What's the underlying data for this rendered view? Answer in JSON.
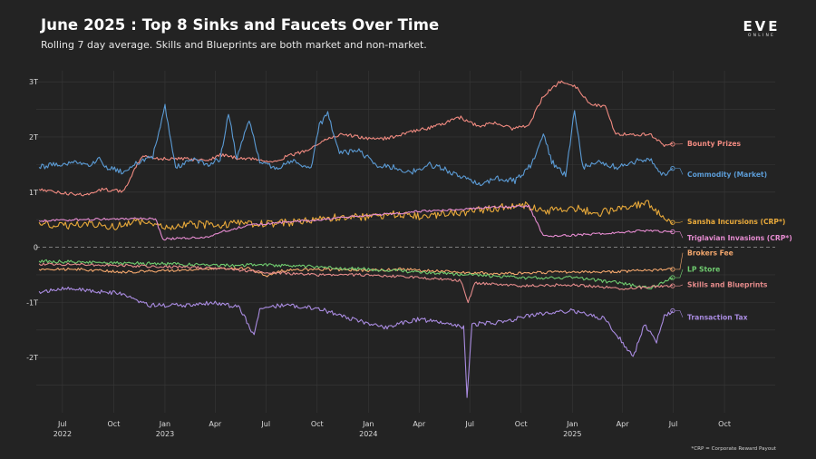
{
  "header": {
    "title": "June 2025 : Top 8 Sinks and Faucets Over Time",
    "subtitle": "Rolling 7 day average. Skills and Blueprints are both market and non-market."
  },
  "logo": {
    "main": "EVE",
    "sub": "ONLINE"
  },
  "footnote": "*CRP = Corporate Reward Payout",
  "chart_data": {
    "type": "line",
    "xlabel": "",
    "ylabel": "",
    "xlim": [
      "2022-05-15",
      "2025-12-31"
    ],
    "ylim": [
      -3.0,
      3.2
    ],
    "y_unit": "trillion ISK",
    "grid": true,
    "zero_line": "dashed",
    "legend": "inline-right",
    "y_ticks": [
      {
        "value": 3,
        "label": "3T"
      },
      {
        "value": 2,
        "label": "2T"
      },
      {
        "value": 1,
        "label": "1T"
      },
      {
        "value": 0,
        "label": "0"
      },
      {
        "value": -1,
        "label": "-1T"
      },
      {
        "value": -2,
        "label": "-2T"
      }
    ],
    "x_ticks": [
      {
        "date": "2022-07-01",
        "month": "Jul",
        "year": "2022"
      },
      {
        "date": "2022-10-01",
        "month": "Oct",
        "year": ""
      },
      {
        "date": "2023-01-01",
        "month": "Jan",
        "year": "2023"
      },
      {
        "date": "2023-04-01",
        "month": "Apr",
        "year": ""
      },
      {
        "date": "2023-07-01",
        "month": "Jul",
        "year": ""
      },
      {
        "date": "2023-10-01",
        "month": "Oct",
        "year": ""
      },
      {
        "date": "2024-01-01",
        "month": "Jan",
        "year": "2024"
      },
      {
        "date": "2024-04-01",
        "month": "Apr",
        "year": ""
      },
      {
        "date": "2024-07-01",
        "month": "Jul",
        "year": ""
      },
      {
        "date": "2024-10-01",
        "month": "Oct",
        "year": ""
      },
      {
        "date": "2025-01-01",
        "month": "Jan",
        "year": "2025"
      },
      {
        "date": "2025-04-01",
        "month": "Apr",
        "year": ""
      },
      {
        "date": "2025-07-01",
        "month": "Jul",
        "year": ""
      },
      {
        "date": "2025-10-01",
        "month": "Oct",
        "year": ""
      }
    ],
    "series": [
      {
        "name": "Bounty Prizes",
        "color": "#f08a80",
        "points": [
          [
            "2022-05-20",
            1.05
          ],
          [
            "2022-07-01",
            0.98
          ],
          [
            "2022-08-15",
            0.95
          ],
          [
            "2022-09-10",
            1.05
          ],
          [
            "2022-10-20",
            1.02
          ],
          [
            "2022-11-05",
            1.35
          ],
          [
            "2022-11-20",
            1.65
          ],
          [
            "2022-12-10",
            1.62
          ],
          [
            "2023-01-10",
            1.6
          ],
          [
            "2023-02-10",
            1.6
          ],
          [
            "2023-03-20",
            1.58
          ],
          [
            "2023-04-10",
            1.68
          ],
          [
            "2023-05-10",
            1.62
          ],
          [
            "2023-06-10",
            1.6
          ],
          [
            "2023-07-10",
            1.55
          ],
          [
            "2023-08-10",
            1.65
          ],
          [
            "2023-09-10",
            1.75
          ],
          [
            "2023-10-15",
            1.95
          ],
          [
            "2023-11-15",
            2.05
          ],
          [
            "2023-12-15",
            2.0
          ],
          [
            "2024-01-15",
            1.95
          ],
          [
            "2024-02-15",
            2.0
          ],
          [
            "2024-03-15",
            2.1
          ],
          [
            "2024-04-15",
            2.15
          ],
          [
            "2024-05-15",
            2.25
          ],
          [
            "2024-06-15",
            2.35
          ],
          [
            "2024-07-15",
            2.2
          ],
          [
            "2024-08-15",
            2.25
          ],
          [
            "2024-09-15",
            2.15
          ],
          [
            "2024-10-15",
            2.2
          ],
          [
            "2024-11-10",
            2.75
          ],
          [
            "2024-12-10",
            3.0
          ],
          [
            "2025-01-10",
            2.9
          ],
          [
            "2025-02-01",
            2.6
          ],
          [
            "2025-03-01",
            2.55
          ],
          [
            "2025-03-20",
            2.05
          ],
          [
            "2025-04-15",
            2.05
          ],
          [
            "2025-05-20",
            2.05
          ],
          [
            "2025-06-15",
            1.85
          ],
          [
            "2025-06-30",
            1.87
          ]
        ]
      },
      {
        "name": "Commodity (Market)",
        "color": "#5b9bd5",
        "points": [
          [
            "2022-05-20",
            1.45
          ],
          [
            "2022-06-20",
            1.5
          ],
          [
            "2022-07-20",
            1.55
          ],
          [
            "2022-08-20",
            1.5
          ],
          [
            "2022-09-05",
            1.6
          ],
          [
            "2022-09-20",
            1.45
          ],
          [
            "2022-10-20",
            1.35
          ],
          [
            "2022-11-15",
            1.55
          ],
          [
            "2022-12-10",
            1.65
          ],
          [
            "2023-01-01",
            2.55
          ],
          [
            "2023-01-20",
            1.45
          ],
          [
            "2023-02-20",
            1.6
          ],
          [
            "2023-03-20",
            1.5
          ],
          [
            "2023-04-10",
            1.6
          ],
          [
            "2023-04-25",
            2.45
          ],
          [
            "2023-05-10",
            1.6
          ],
          [
            "2023-06-01",
            2.3
          ],
          [
            "2023-06-20",
            1.55
          ],
          [
            "2023-07-20",
            1.45
          ],
          [
            "2023-08-20",
            1.55
          ],
          [
            "2023-09-20",
            1.45
          ],
          [
            "2023-10-05",
            2.2
          ],
          [
            "2023-10-20",
            2.45
          ],
          [
            "2023-11-10",
            1.7
          ],
          [
            "2023-12-15",
            1.75
          ],
          [
            "2024-01-15",
            1.5
          ],
          [
            "2024-02-15",
            1.45
          ],
          [
            "2024-03-15",
            1.35
          ],
          [
            "2024-04-20",
            1.5
          ],
          [
            "2024-05-20",
            1.4
          ],
          [
            "2024-06-20",
            1.25
          ],
          [
            "2024-07-20",
            1.15
          ],
          [
            "2024-08-20",
            1.25
          ],
          [
            "2024-09-20",
            1.2
          ],
          [
            "2024-10-20",
            1.5
          ],
          [
            "2024-11-10",
            2.05
          ],
          [
            "2024-11-25",
            1.55
          ],
          [
            "2024-12-20",
            1.3
          ],
          [
            "2025-01-05",
            2.5
          ],
          [
            "2025-01-20",
            1.45
          ],
          [
            "2025-02-20",
            1.55
          ],
          [
            "2025-03-20",
            1.45
          ],
          [
            "2025-04-20",
            1.55
          ],
          [
            "2025-05-20",
            1.6
          ],
          [
            "2025-06-10",
            1.3
          ],
          [
            "2025-06-30",
            1.43
          ]
        ]
      },
      {
        "name": "Sansha Incursions (CRP*)",
        "color": "#e8a93a",
        "points": [
          [
            "2022-05-20",
            0.45
          ],
          [
            "2022-07-01",
            0.38
          ],
          [
            "2022-08-15",
            0.45
          ],
          [
            "2022-10-01",
            0.38
          ],
          [
            "2022-11-15",
            0.45
          ],
          [
            "2023-01-01",
            0.35
          ],
          [
            "2023-02-15",
            0.42
          ],
          [
            "2023-04-01",
            0.4
          ],
          [
            "2023-05-15",
            0.45
          ],
          [
            "2023-07-01",
            0.42
          ],
          [
            "2023-08-15",
            0.45
          ],
          [
            "2023-10-01",
            0.5
          ],
          [
            "2023-11-15",
            0.55
          ],
          [
            "2024-01-01",
            0.55
          ],
          [
            "2024-02-15",
            0.6
          ],
          [
            "2024-04-01",
            0.55
          ],
          [
            "2024-05-15",
            0.6
          ],
          [
            "2024-07-01",
            0.65
          ],
          [
            "2024-08-15",
            0.7
          ],
          [
            "2024-10-01",
            0.78
          ],
          [
            "2024-11-15",
            0.65
          ],
          [
            "2025-01-01",
            0.72
          ],
          [
            "2025-02-15",
            0.62
          ],
          [
            "2025-04-01",
            0.7
          ],
          [
            "2025-05-15",
            0.8
          ],
          [
            "2025-06-15",
            0.55
          ],
          [
            "2025-06-30",
            0.45
          ]
        ]
      },
      {
        "name": "Triglavian Invasions (CRP*)",
        "color": "#e58bd0",
        "points": [
          [
            "2022-05-20",
            0.48
          ],
          [
            "2022-08-01",
            0.5
          ],
          [
            "2022-10-15",
            0.52
          ],
          [
            "2022-12-15",
            0.52
          ],
          [
            "2022-12-28",
            0.15
          ],
          [
            "2023-03-15",
            0.18
          ],
          [
            "2023-04-20",
            0.3
          ],
          [
            "2023-06-01",
            0.4
          ],
          [
            "2023-08-01",
            0.45
          ],
          [
            "2023-10-01",
            0.5
          ],
          [
            "2023-12-01",
            0.55
          ],
          [
            "2024-02-01",
            0.6
          ],
          [
            "2024-04-01",
            0.65
          ],
          [
            "2024-06-01",
            0.68
          ],
          [
            "2024-08-01",
            0.72
          ],
          [
            "2024-10-15",
            0.75
          ],
          [
            "2024-11-10",
            0.2
          ],
          [
            "2025-01-01",
            0.22
          ],
          [
            "2025-03-01",
            0.25
          ],
          [
            "2025-05-01",
            0.3
          ],
          [
            "2025-06-30",
            0.28
          ]
        ]
      },
      {
        "name": "Brokers Fee",
        "color": "#f2a66c",
        "points": [
          [
            "2022-05-20",
            -0.4
          ],
          [
            "2022-08-01",
            -0.4
          ],
          [
            "2022-10-15",
            -0.45
          ],
          [
            "2023-01-01",
            -0.42
          ],
          [
            "2023-03-15",
            -0.4
          ],
          [
            "2023-06-01",
            -0.38
          ],
          [
            "2023-07-01",
            -0.52
          ],
          [
            "2023-08-01",
            -0.42
          ],
          [
            "2023-10-01",
            -0.4
          ],
          [
            "2024-01-01",
            -0.42
          ],
          [
            "2024-03-01",
            -0.4
          ],
          [
            "2024-06-01",
            -0.45
          ],
          [
            "2024-09-01",
            -0.48
          ],
          [
            "2024-12-01",
            -0.45
          ],
          [
            "2025-03-01",
            -0.45
          ],
          [
            "2025-06-30",
            -0.4
          ]
        ]
      },
      {
        "name": "LP Store",
        "color": "#6fcb6f",
        "points": [
          [
            "2022-05-20",
            -0.25
          ],
          [
            "2022-09-01",
            -0.28
          ],
          [
            "2023-01-01",
            -0.3
          ],
          [
            "2023-04-01",
            -0.33
          ],
          [
            "2023-07-01",
            -0.32
          ],
          [
            "2023-10-01",
            -0.36
          ],
          [
            "2024-01-01",
            -0.4
          ],
          [
            "2024-04-01",
            -0.45
          ],
          [
            "2024-07-01",
            -0.5
          ],
          [
            "2024-10-01",
            -0.55
          ],
          [
            "2025-01-01",
            -0.55
          ],
          [
            "2025-04-01",
            -0.65
          ],
          [
            "2025-05-20",
            -0.75
          ],
          [
            "2025-06-30",
            -0.55
          ]
        ]
      },
      {
        "name": "Skills and Blueprints",
        "color": "#e38a8a",
        "points": [
          [
            "2022-05-20",
            -0.3
          ],
          [
            "2022-09-01",
            -0.32
          ],
          [
            "2023-01-01",
            -0.35
          ],
          [
            "2023-04-01",
            -0.38
          ],
          [
            "2023-07-01",
            -0.45
          ],
          [
            "2023-10-01",
            -0.5
          ],
          [
            "2024-01-01",
            -0.5
          ],
          [
            "2024-04-01",
            -0.55
          ],
          [
            "2024-06-15",
            -0.6
          ],
          [
            "2024-06-28",
            -1.0
          ],
          [
            "2024-07-10",
            -0.65
          ],
          [
            "2024-10-01",
            -0.7
          ],
          [
            "2025-01-01",
            -0.68
          ],
          [
            "2025-04-01",
            -0.75
          ],
          [
            "2025-06-30",
            -0.7
          ]
        ]
      },
      {
        "name": "Transaction Tax",
        "color": "#a98be0",
        "points": [
          [
            "2022-05-20",
            -0.8
          ],
          [
            "2022-07-01",
            -0.75
          ],
          [
            "2022-09-01",
            -0.8
          ],
          [
            "2022-10-20",
            -0.85
          ],
          [
            "2022-12-01",
            -1.05
          ],
          [
            "2023-02-01",
            -1.05
          ],
          [
            "2023-04-01",
            -1.0
          ],
          [
            "2023-05-15",
            -1.1
          ],
          [
            "2023-06-10",
            -1.6
          ],
          [
            "2023-06-20",
            -1.1
          ],
          [
            "2023-08-01",
            -1.05
          ],
          [
            "2023-10-01",
            -1.1
          ],
          [
            "2023-12-01",
            -1.3
          ],
          [
            "2024-02-01",
            -1.45
          ],
          [
            "2024-04-01",
            -1.3
          ],
          [
            "2024-06-20",
            -1.45
          ],
          [
            "2024-06-26",
            -2.7
          ],
          [
            "2024-07-05",
            -1.4
          ],
          [
            "2024-09-01",
            -1.35
          ],
          [
            "2024-11-01",
            -1.2
          ],
          [
            "2025-01-01",
            -1.15
          ],
          [
            "2025-03-01",
            -1.3
          ],
          [
            "2025-04-10",
            -1.85
          ],
          [
            "2025-04-20",
            -2.0
          ],
          [
            "2025-05-10",
            -1.4
          ],
          [
            "2025-06-01",
            -1.7
          ],
          [
            "2025-06-15",
            -1.25
          ],
          [
            "2025-06-30",
            -1.15
          ]
        ]
      }
    ],
    "labels": [
      {
        "series": "Bounty Prizes",
        "y": 1.88
      },
      {
        "series": "Commodity (Market)",
        "y": 1.32
      },
      {
        "series": "Sansha Incursions (CRP*)",
        "y": 0.47
      },
      {
        "series": "Triglavian Invasions (CRP*)",
        "y": 0.17
      },
      {
        "series": "Brokers Fee",
        "y": -0.1
      },
      {
        "series": "LP Store",
        "y": -0.4
      },
      {
        "series": "Skills and Blueprints",
        "y": -0.68
      },
      {
        "series": "Transaction Tax",
        "y": -1.27
      }
    ]
  }
}
